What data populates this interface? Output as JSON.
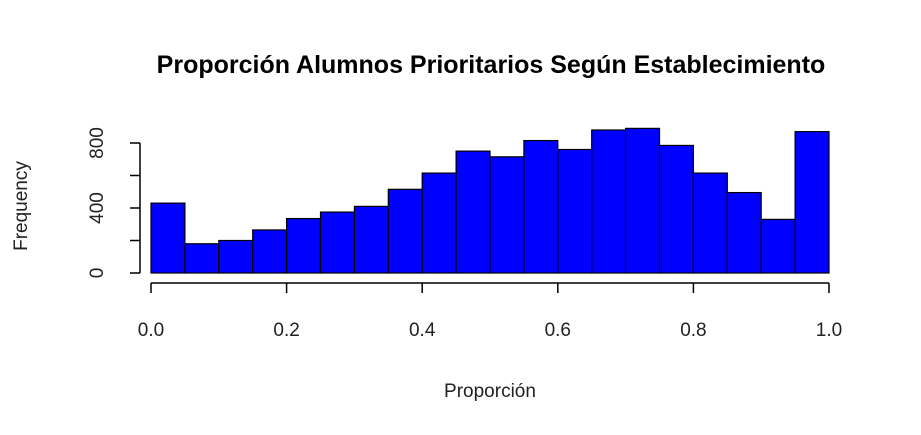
{
  "chart_data": {
    "type": "bar",
    "title": "Proporción Alumnos Prioritarios Según Establecimiento",
    "xlabel": "Proporción",
    "ylabel": "Frequency",
    "bin_edges": [
      0.0,
      0.05,
      0.1,
      0.15,
      0.2,
      0.25,
      0.3,
      0.35,
      0.4,
      0.45,
      0.5,
      0.55,
      0.6,
      0.65,
      0.7,
      0.75,
      0.8,
      0.85,
      0.9,
      0.95,
      1.0
    ],
    "values": [
      430,
      180,
      200,
      265,
      335,
      375,
      410,
      515,
      615,
      750,
      715,
      815,
      760,
      880,
      890,
      785,
      615,
      495,
      330,
      870
    ],
    "xlim": [
      0.0,
      1.0
    ],
    "ylim": [
      0,
      800
    ],
    "x_ticks": [
      "0.0",
      "0.2",
      "0.4",
      "0.6",
      "0.8",
      "1.0"
    ],
    "y_ticks": [
      "0",
      "400",
      "800"
    ],
    "bar_color": "#0000ff",
    "grid": false,
    "legend": "none"
  }
}
